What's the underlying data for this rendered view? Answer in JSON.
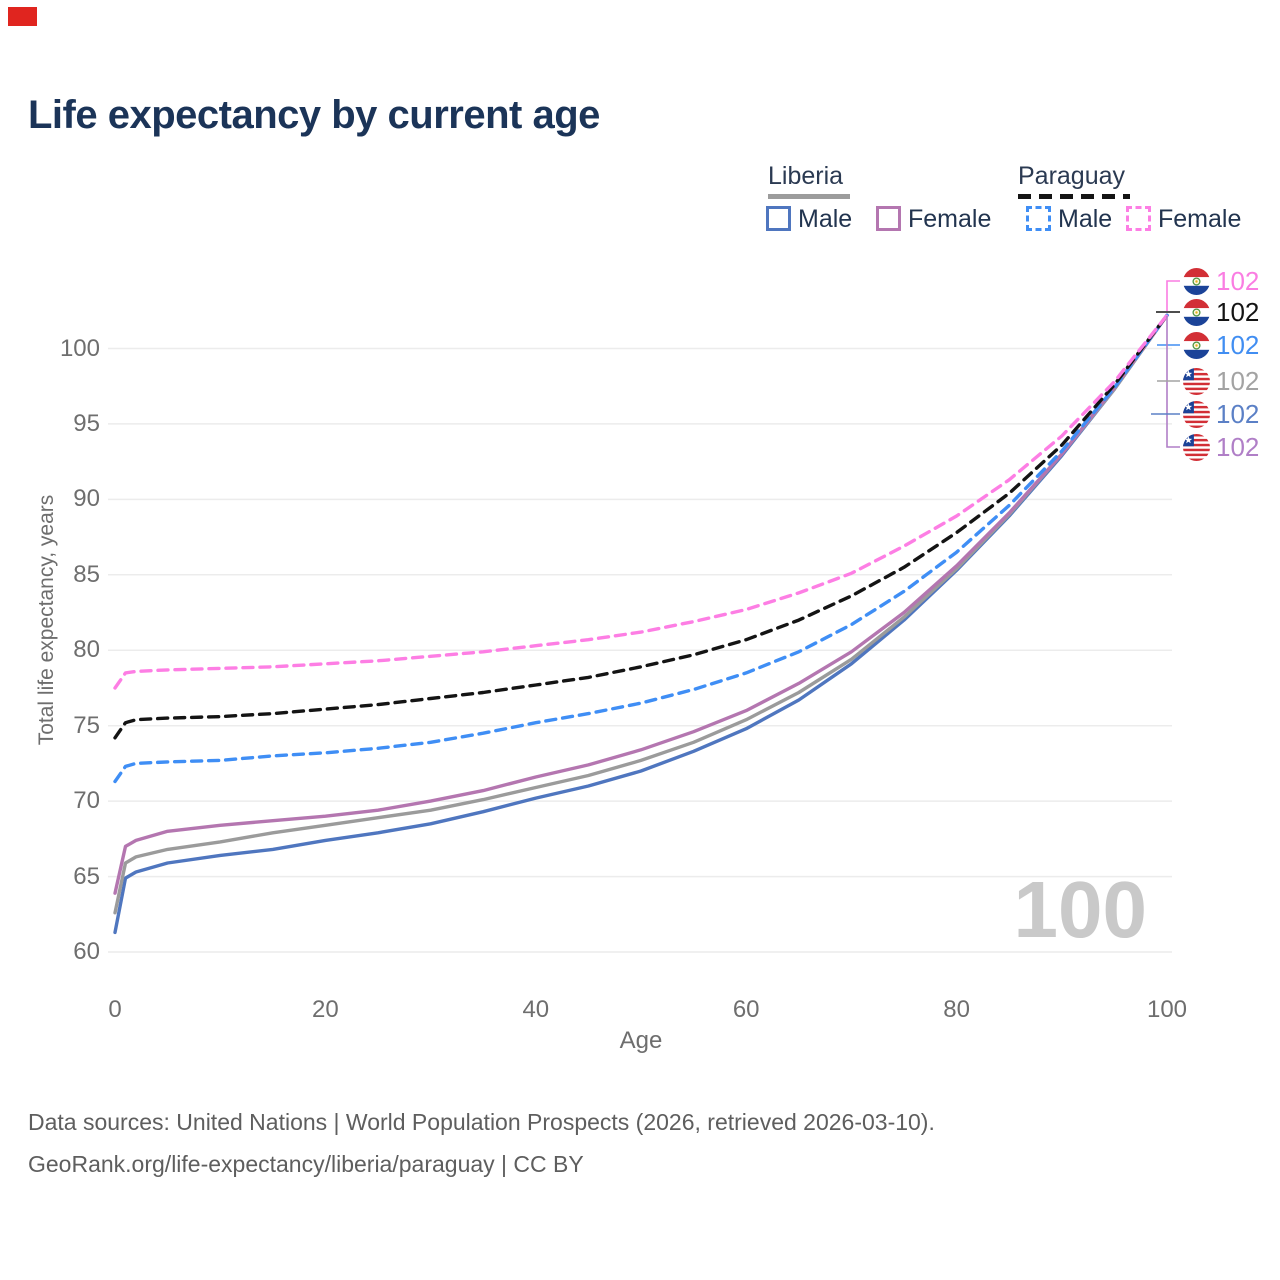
{
  "title": "Life expectancy by current age",
  "marker_color": "#e0251f",
  "legend": {
    "groups": [
      {
        "label": "Liberia",
        "line_style": "solid",
        "underline_color": "#9c9c9c",
        "items": [
          {
            "label": "Male",
            "color": "#4f76bf"
          },
          {
            "label": "Female",
            "color": "#b476b0"
          }
        ]
      },
      {
        "label": "Paraguay",
        "line_style": "dashed",
        "underline_color": "#141414",
        "items": [
          {
            "label": "Male",
            "color": "#3f8ef5"
          },
          {
            "label": "Female",
            "color": "#fd7ee4"
          }
        ]
      }
    ]
  },
  "chart_data": {
    "type": "line",
    "title": "Life expectancy by current age",
    "xlabel": "Age",
    "ylabel": "Total life expectancy, years",
    "xlim": [
      0,
      100
    ],
    "ylim": [
      60,
      103
    ],
    "xticks": [
      0,
      20,
      40,
      60,
      80,
      100
    ],
    "yticks": [
      60,
      65,
      70,
      75,
      80,
      85,
      90,
      95,
      100
    ],
    "grid": "horizontal",
    "legend_position": "top-right",
    "x": [
      0,
      1,
      2,
      5,
      10,
      15,
      20,
      25,
      30,
      35,
      40,
      45,
      50,
      55,
      60,
      65,
      70,
      75,
      80,
      85,
      90,
      95,
      100
    ],
    "series": [
      {
        "name": "Liberia Male",
        "country": "Liberia",
        "sex": "Male",
        "color": "#4f76bf",
        "dash": false,
        "values": [
          61.3,
          64.9,
          65.3,
          65.9,
          66.4,
          66.8,
          67.4,
          67.9,
          68.5,
          69.3,
          70.2,
          71.0,
          72.0,
          73.3,
          74.8,
          76.7,
          79.1,
          82.0,
          85.3,
          88.9,
          92.9,
          97.3,
          102.2
        ]
      },
      {
        "name": "Liberia Total",
        "country": "Liberia",
        "sex": "Total",
        "color": "#9b9b9b",
        "dash": false,
        "values": [
          62.6,
          65.9,
          66.3,
          66.8,
          67.3,
          67.9,
          68.4,
          68.9,
          69.4,
          70.1,
          70.9,
          71.7,
          72.7,
          73.9,
          75.4,
          77.2,
          79.4,
          82.2,
          85.4,
          89.0,
          93.0,
          97.3,
          102.2
        ]
      },
      {
        "name": "Liberia Female",
        "country": "Liberia",
        "sex": "Female",
        "color": "#b476b0",
        "dash": false,
        "values": [
          63.9,
          67.0,
          67.4,
          68.0,
          68.4,
          68.7,
          69.0,
          69.4,
          70.0,
          70.7,
          71.6,
          72.4,
          73.4,
          74.6,
          76.0,
          77.8,
          79.9,
          82.5,
          85.6,
          89.1,
          93.0,
          97.4,
          102.2
        ]
      },
      {
        "name": "Paraguay Male",
        "country": "Paraguay",
        "sex": "Male",
        "color": "#3f8ef5",
        "dash": true,
        "values": [
          71.3,
          72.3,
          72.5,
          72.6,
          72.7,
          73.0,
          73.2,
          73.5,
          73.9,
          74.5,
          75.2,
          75.8,
          76.5,
          77.4,
          78.5,
          79.9,
          81.7,
          83.9,
          86.5,
          89.6,
          93.2,
          97.4,
          102.2
        ]
      },
      {
        "name": "Paraguay Total",
        "country": "Paraguay",
        "sex": "Total",
        "color": "#141414",
        "dash": true,
        "values": [
          74.2,
          75.2,
          75.4,
          75.5,
          75.6,
          75.8,
          76.1,
          76.4,
          76.8,
          77.2,
          77.7,
          78.2,
          78.9,
          79.7,
          80.7,
          82.0,
          83.6,
          85.5,
          87.8,
          90.4,
          93.6,
          97.6,
          102.2
        ]
      },
      {
        "name": "Paraguay Female",
        "country": "Paraguay",
        "sex": "Female",
        "color": "#fd7ee4",
        "dash": true,
        "values": [
          77.5,
          78.5,
          78.6,
          78.7,
          78.8,
          78.9,
          79.1,
          79.3,
          79.6,
          79.9,
          80.3,
          80.7,
          81.2,
          81.9,
          82.7,
          83.8,
          85.1,
          86.9,
          88.9,
          91.3,
          94.2,
          97.8,
          102.2
        ]
      }
    ]
  },
  "right_labels": [
    {
      "flag": "paraguay",
      "value": "102",
      "color": "#fa7de2"
    },
    {
      "flag": "paraguay",
      "value": "102",
      "color": "#141414"
    },
    {
      "flag": "paraguay",
      "value": "102",
      "color": "#418ef2"
    },
    {
      "flag": "liberia",
      "value": "102",
      "color": "#a3a3a3"
    },
    {
      "flag": "liberia",
      "value": "102",
      "color": "#5b80c6"
    },
    {
      "flag": "liberia",
      "value": "102",
      "color": "#b07fc7"
    }
  ],
  "watermark": "100",
  "footer": {
    "line1": "Data sources: United Nations | World Population Prospects (2026, retrieved 2026-03-10).",
    "line2": "GeoRank.org/life-expectancy/liberia/paraguay | CC BY"
  }
}
